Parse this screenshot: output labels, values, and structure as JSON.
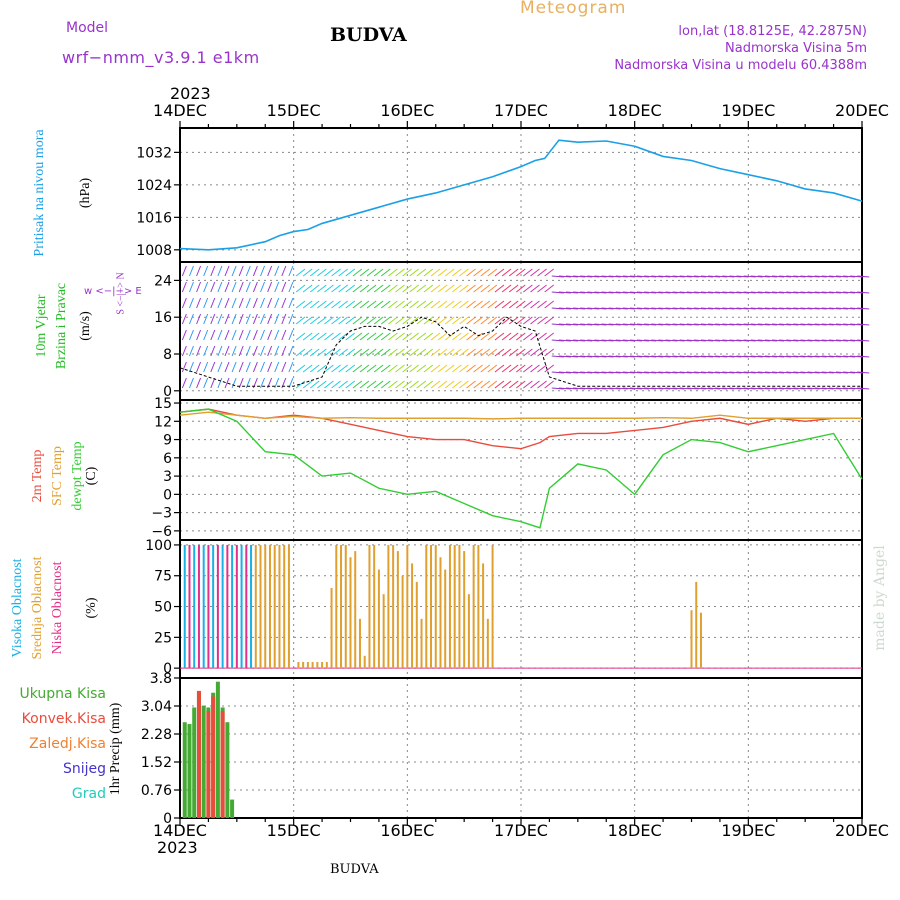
{
  "header": {
    "model_label": "Model",
    "model_name": "wrf−nmm_v3.9.1  e1km",
    "city": "BUDVA",
    "meteogram": "Meteogram",
    "lonlat": "lon,lat (18.8125E, 42.2875N)",
    "altitude": "Nadmorska Visina 5m",
    "model_altitude": "Nadmorska Visina u modelu 60.4388m",
    "year_top": "2023",
    "year_bottom": "2023",
    "footer_city": "BUDVA",
    "signature": "made by Angel"
  },
  "colors": {
    "pressure": "#1aa0e6",
    "wind_label": "#22bb22",
    "temp2m": "#e84c3c",
    "sfc": "#e0a030",
    "dew": "#33cc33",
    "cloud_high": "#1ab0e6",
    "cloud_mid": "#e0a030",
    "cloud_low": "#e0308a",
    "precip_total": "#44aa33",
    "precip_conv": "#e84c3c",
    "precip_frz": "#f08030",
    "snow": "#4433cc",
    "hail": "#22ccbb",
    "purple": "#9933cc",
    "meteogram": "#e8b060"
  },
  "x_axis": {
    "ticks": [
      "14DEC",
      "15DEC",
      "16DEC",
      "17DEC",
      "18DEC",
      "19DEC",
      "20DEC"
    ]
  },
  "panels": {
    "pressure": {
      "label1": "Pritisak na nivou mora",
      "unit": "(hPa)",
      "yticks": [
        "1008",
        "1016",
        "1024",
        "1032"
      ]
    },
    "wind": {
      "label1": "10m Vjetar",
      "label2": "Brzina i Pravac",
      "unit": "(m/s)",
      "compass": "w <−|−> E",
      "compass_ns": "S <−|−> N",
      "yticks": [
        "0",
        "8",
        "16",
        "24"
      ]
    },
    "temp": {
      "label1": "2m Temp",
      "label2": "SFC Temp",
      "label3": "dewpt Temp",
      "unit": "(C)",
      "yticks": [
        "−6",
        "−3",
        "0",
        "3",
        "6",
        "9",
        "12",
        "15"
      ]
    },
    "cloud": {
      "label1": "Visoka Oblacnost",
      "label2": "Srednja Oblacnost",
      "label3": "Niska Oblacnost",
      "unit": "(%)",
      "yticks": [
        "0",
        "25",
        "50",
        "75",
        "100"
      ]
    },
    "precip": {
      "unit": "1hr Precip (mm)",
      "yticks": [
        "0",
        "0.76",
        "1.52",
        "2.28",
        "3.04",
        "3.8"
      ],
      "legend": [
        "Ukupna Kisa",
        "Konvek.Kisa",
        "Zaledj.Kisa",
        "Snijeg",
        "Grad"
      ]
    }
  },
  "chart_data": [
    {
      "type": "line",
      "ylabel": "(hPa)",
      "ylim": [
        1005,
        1038
      ],
      "x_hours": [
        0,
        6,
        12,
        18,
        21,
        24,
        27,
        30,
        36,
        42,
        48,
        54,
        60,
        66,
        72,
        75,
        77,
        80,
        84,
        90,
        96,
        102,
        108,
        114,
        120,
        126,
        132,
        138,
        144
      ],
      "series": [
        {
          "values": [
            1008.3,
            1008.0,
            1008.5,
            1010.0,
            1011.5,
            1012.5,
            1013.0,
            1014.5,
            1016.5,
            1018.5,
            1020.5,
            1022.0,
            1024.0,
            1026.0,
            1028.5,
            1030.0,
            1030.5,
            1035.0,
            1034.5,
            1034.8,
            1033.5,
            1031.0,
            1030.0,
            1028.0,
            1026.5,
            1025.0,
            1023.0,
            1022.0,
            1020.0
          ]
        }
      ]
    },
    {
      "type": "scatter",
      "ylabel": "(m/s)",
      "ylim": [
        -2,
        28
      ],
      "x_hours": [
        0,
        3,
        6,
        9,
        12,
        15,
        18,
        21,
        24,
        27,
        30,
        33,
        36,
        39,
        42,
        45,
        48,
        51,
        54,
        57,
        60,
        63,
        66,
        69,
        72,
        75,
        78,
        81,
        84,
        90,
        96,
        102,
        108,
        114,
        120,
        126,
        132,
        138,
        144
      ],
      "series": [
        {
          "values": [
            5,
            4,
            3,
            2,
            1,
            1,
            1,
            1,
            1,
            2,
            3,
            10,
            13,
            14,
            14,
            13,
            14,
            16,
            15,
            12,
            14,
            12,
            13,
            16,
            14,
            13,
            3,
            2,
            1,
            1,
            1,
            1,
            1,
            1,
            1,
            1,
            1,
            1,
            1
          ]
        }
      ]
    },
    {
      "type": "line",
      "ylabel": "(C)",
      "ylim": [
        -7.5,
        15.5
      ],
      "x_hours": [
        0,
        6,
        12,
        18,
        24,
        30,
        36,
        42,
        48,
        54,
        60,
        66,
        72,
        76,
        78,
        84,
        90,
        96,
        102,
        108,
        114,
        120,
        126,
        132,
        138,
        144
      ],
      "series": [
        {
          "name": "2m Temp",
          "values": [
            13.5,
            14.0,
            13.0,
            12.5,
            13.0,
            12.5,
            11.5,
            10.5,
            9.5,
            9.0,
            9.0,
            8.0,
            7.5,
            8.5,
            9.5,
            10.0,
            10.0,
            10.5,
            11.0,
            12.0,
            12.5,
            11.5,
            12.5,
            12.0,
            12.5,
            12.5
          ]
        },
        {
          "name": "SFC Temp",
          "values": [
            13.0,
            13.5,
            13.0,
            12.5,
            12.8,
            12.5,
            12.6,
            12.5,
            12.5,
            12.5,
            12.5,
            12.4,
            12.5,
            12.5,
            12.5,
            12.5,
            12.5,
            12.5,
            12.6,
            12.5,
            13.0,
            12.5,
            12.5,
            12.5,
            12.5,
            12.5
          ]
        },
        {
          "name": "dewpt Temp",
          "values": [
            13.5,
            14.0,
            12.0,
            7.0,
            6.5,
            3.0,
            3.5,
            1.0,
            0.0,
            0.5,
            -1.5,
            -3.5,
            -4.5,
            -5.5,
            1.0,
            5.0,
            4.0,
            0.0,
            6.5,
            9.0,
            8.5,
            7.0,
            8.0,
            9.0,
            10.0,
            2.5
          ]
        }
      ]
    },
    {
      "type": "bar",
      "ylabel": "(%)",
      "ylim": [
        0,
        100
      ],
      "series": [
        {
          "name": "Visoka Oblacnost",
          "x_hours": [
            1,
            3,
            5,
            7,
            9,
            11,
            13,
            15
          ],
          "values": [
            100,
            100,
            100,
            100,
            100,
            100,
            100,
            100
          ]
        },
        {
          "name": "Srednja Oblacnost",
          "x_hours": [
            16,
            17,
            18,
            19,
            20,
            21,
            22,
            23,
            25,
            26,
            27,
            28,
            29,
            30,
            31,
            32,
            33,
            34,
            35,
            36,
            37,
            38,
            39,
            40,
            41,
            42,
            43,
            44,
            45,
            46,
            47,
            48,
            49,
            50,
            51,
            52,
            53,
            54,
            55,
            56,
            57,
            58,
            59,
            60,
            61,
            62,
            63,
            64,
            65,
            66,
            108,
            109,
            110
          ],
          "values": [
            100,
            100,
            100,
            100,
            100,
            100,
            100,
            100,
            5,
            5,
            5,
            5,
            5,
            5,
            5,
            65,
            100,
            100,
            100,
            90,
            95,
            40,
            10,
            100,
            100,
            80,
            60,
            100,
            100,
            95,
            75,
            100,
            85,
            70,
            40,
            100,
            100,
            100,
            90,
            80,
            100,
            100,
            100,
            95,
            60,
            100,
            100,
            85,
            40,
            100,
            47,
            70,
            45
          ]
        },
        {
          "name": "Niska Oblacnost",
          "x_hours": [
            2,
            4,
            6,
            8,
            10,
            12,
            14
          ],
          "values": [
            100,
            100,
            100,
            100,
            100,
            100,
            100
          ]
        }
      ]
    },
    {
      "type": "bar",
      "ylabel": "1hr Precip (mm)",
      "ylim": [
        0,
        3.8
      ],
      "series": [
        {
          "name": "Ukupna Kisa",
          "x_hours": [
            1,
            2,
            3,
            4,
            5,
            6,
            7,
            8,
            9,
            10,
            11
          ],
          "values": [
            2.6,
            2.55,
            3.0,
            3.4,
            3.05,
            3.0,
            3.4,
            3.7,
            3.0,
            2.6,
            0.5
          ]
        },
        {
          "name": "Konvek.Kisa",
          "x_hours": [
            1,
            2,
            3,
            4,
            5,
            6,
            7,
            8,
            9,
            10,
            11
          ],
          "values": [
            0.0,
            0.0,
            0.0,
            3.45,
            0.0,
            2.9,
            3.3,
            0.0,
            2.9,
            0.0,
            0.0
          ]
        }
      ]
    }
  ]
}
